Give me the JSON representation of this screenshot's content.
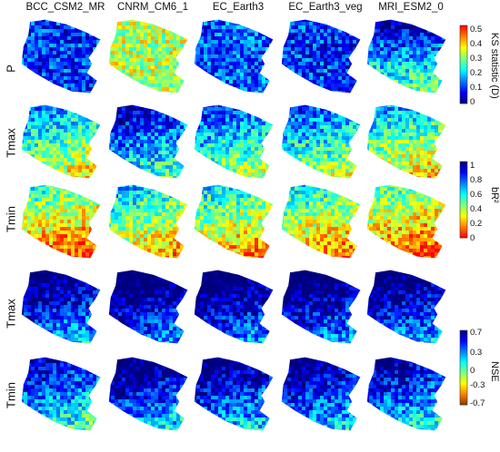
{
  "chart_data": {
    "type": "heatmap",
    "title": "",
    "columns": [
      "BCC_CSM2_MR",
      "CNRM_CM6_1",
      "EC_Earth3",
      "EC_Earth3_veg",
      "MRI_ESM2_0"
    ],
    "rows": [
      "P",
      "Tmax",
      "Tmin",
      "Tmax",
      "Tmin"
    ],
    "row_metric": [
      "ks",
      "br2",
      "br2",
      "nse",
      "nse"
    ],
    "panel_mean": [
      [
        0.1,
        0.32,
        0.12,
        0.1,
        0.16
      ],
      [
        0.52,
        0.74,
        0.62,
        0.6,
        0.48
      ],
      [
        0.32,
        0.44,
        0.4,
        0.38,
        0.3
      ],
      [
        0.55,
        0.64,
        0.63,
        0.62,
        0.58
      ],
      [
        0.35,
        0.52,
        0.5,
        0.5,
        0.42
      ]
    ],
    "colorbars": [
      {
        "id": "ks",
        "label": "KS statistic (D)",
        "min": 0,
        "max": 0.5,
        "ticks": [
          "0.5",
          "0.4",
          "0.3",
          "0.2",
          "0.1",
          "0"
        ],
        "colormap": [
          "#00007f",
          "#0000ff",
          "#007fff",
          "#00ffff",
          "#7fff7f",
          "#ffff00",
          "#ff7f00",
          "#ff0000"
        ]
      },
      {
        "id": "br2",
        "label": "bR²",
        "min": 0,
        "max": 1,
        "ticks": [
          "1",
          "0.8",
          "0.6",
          "0.4",
          "0.2",
          "0"
        ],
        "colormap": [
          "#ff0000",
          "#ff7f00",
          "#ffff00",
          "#7fff7f",
          "#00ffff",
          "#007fff",
          "#0000ff",
          "#00007f"
        ]
      },
      {
        "id": "nse",
        "label": "NSE",
        "min": -0.7,
        "max": 0.7,
        "ticks": [
          "0.7",
          "0.3",
          "0",
          "-0.3",
          "-0.7"
        ],
        "colormap": [
          "#7f3f00",
          "#ff7f00",
          "#ffff00",
          "#7fff7f",
          "#00ffff",
          "#007fff",
          "#0000ff",
          "#00007f"
        ]
      }
    ]
  }
}
